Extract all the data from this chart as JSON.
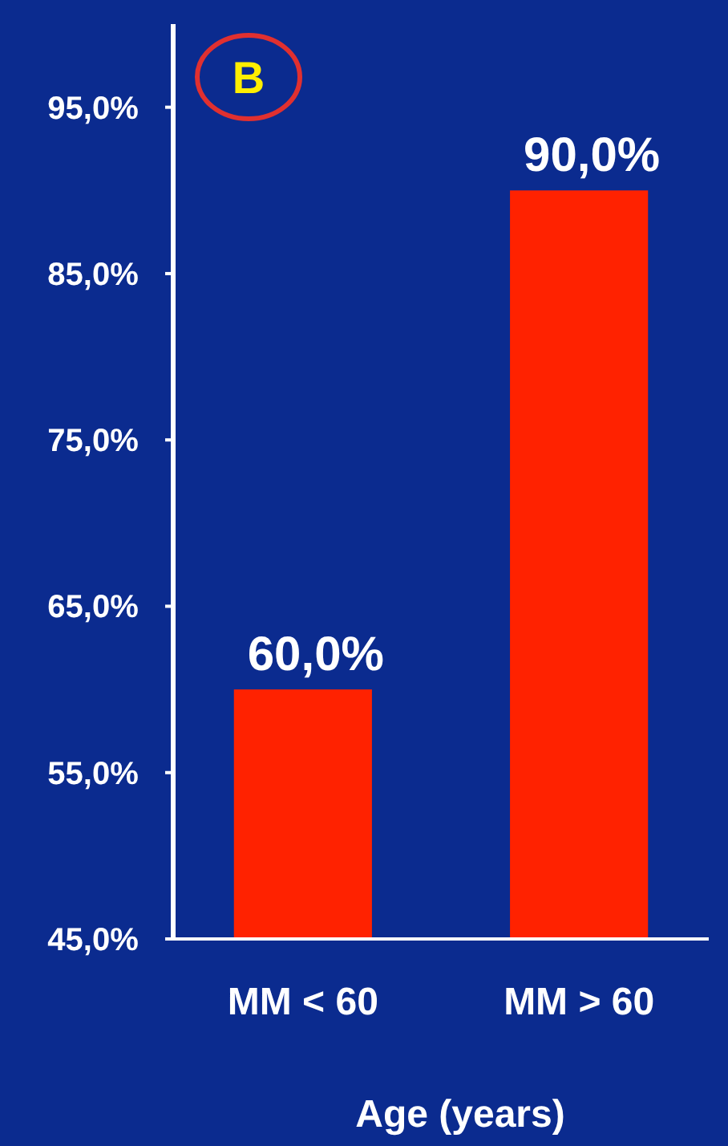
{
  "chart_data": {
    "type": "bar",
    "xlabel": "Age (years)",
    "categories": [
      "MM < 60",
      "MM > 60"
    ],
    "values": [
      60,
      90
    ],
    "value_labels": [
      "60,0%",
      "90,0%"
    ],
    "color": "#ff2200",
    "ylim": [
      45,
      100
    ],
    "yticks": [
      {
        "value": 45,
        "label": "45,0%"
      },
      {
        "value": 55,
        "label": "55,0%"
      },
      {
        "value": 65,
        "label": "65,0%"
      },
      {
        "value": 75,
        "label": "75,0%"
      },
      {
        "value": 85,
        "label": "85,0%"
      },
      {
        "value": 95,
        "label": "95,0%"
      }
    ],
    "annotations": [
      "B"
    ]
  }
}
